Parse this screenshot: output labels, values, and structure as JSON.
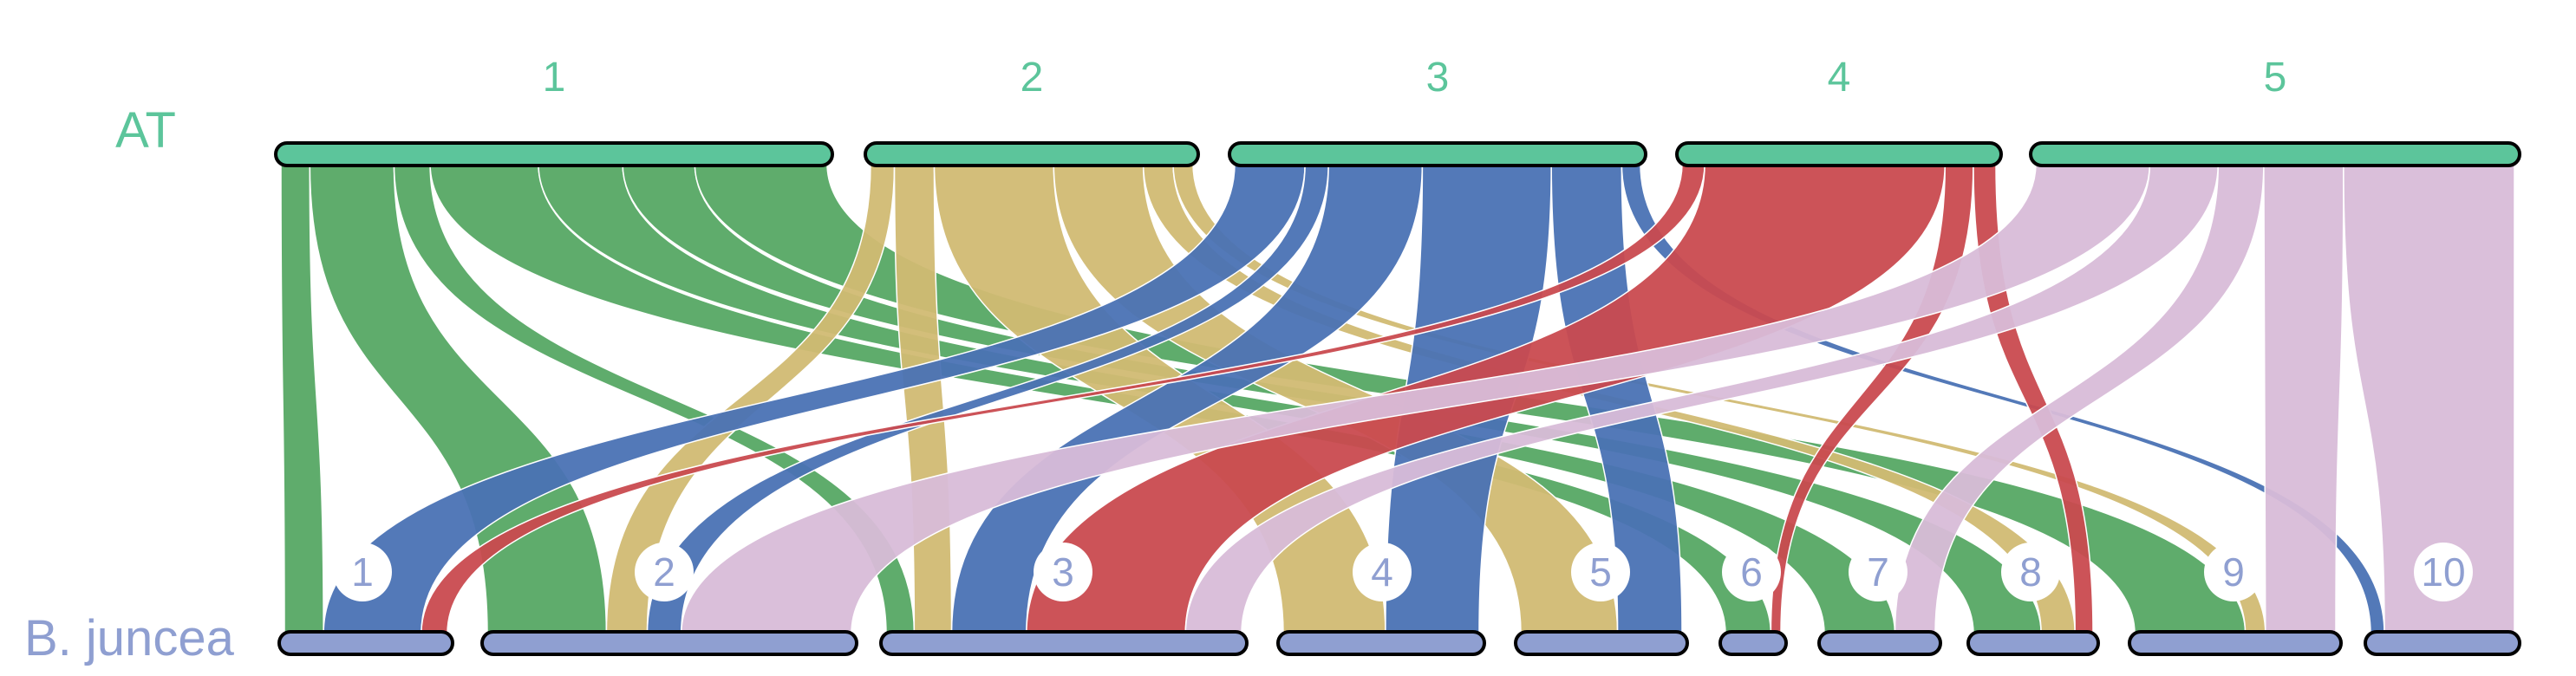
{
  "title": "",
  "top_genome": {
    "label": "AT",
    "color": "#5cc59b",
    "chromosomes": [
      {
        "id": "1",
        "label": "1"
      },
      {
        "id": "2",
        "label": "2"
      },
      {
        "id": "3",
        "label": "3"
      },
      {
        "id": "4",
        "label": "4"
      },
      {
        "id": "5",
        "label": "5"
      }
    ]
  },
  "bottom_genome": {
    "label": "B. juncea",
    "color": "#8f9fd1",
    "chromosomes": [
      {
        "id": "1",
        "label": "1"
      },
      {
        "id": "2",
        "label": "2"
      },
      {
        "id": "3",
        "label": "3"
      },
      {
        "id": "4",
        "label": "4"
      },
      {
        "id": "5",
        "label": "5"
      },
      {
        "id": "6",
        "label": "6"
      },
      {
        "id": "7",
        "label": "7"
      },
      {
        "id": "8",
        "label": "8"
      },
      {
        "id": "9",
        "label": "9"
      },
      {
        "id": "10",
        "label": "10"
      }
    ]
  },
  "source_colors": {
    "1": "#56a864",
    "2": "#d1bb73",
    "3": "#4a72b4",
    "4": "#c94a4f",
    "5": "#d8bcd8"
  },
  "links": [
    {
      "from": "1",
      "to": "1",
      "weight": 0.12
    },
    {
      "from": "1",
      "to": "2",
      "weight": 0.35
    },
    {
      "from": "1",
      "to": "3",
      "weight": 0.15
    },
    {
      "from": "1",
      "to": "6",
      "weight": 0.45
    },
    {
      "from": "1",
      "to": "7",
      "weight": 0.35
    },
    {
      "from": "1",
      "to": "8",
      "weight": 0.3
    },
    {
      "from": "1",
      "to": "9",
      "weight": 0.55
    },
    {
      "from": "2",
      "to": "2",
      "weight": 0.12
    },
    {
      "from": "2",
      "to": "3",
      "weight": 0.2
    },
    {
      "from": "2",
      "to": "4",
      "weight": 0.6
    },
    {
      "from": "2",
      "to": "5",
      "weight": 0.45
    },
    {
      "from": "2",
      "to": "8",
      "weight": 0.15
    },
    {
      "from": "2",
      "to": "9",
      "weight": 0.1
    },
    {
      "from": "3",
      "to": "1",
      "weight": 0.3
    },
    {
      "from": "3",
      "to": "2",
      "weight": 0.1
    },
    {
      "from": "3",
      "to": "3",
      "weight": 0.4
    },
    {
      "from": "3",
      "to": "4",
      "weight": 0.55
    },
    {
      "from": "3",
      "to": "5",
      "weight": 0.3
    },
    {
      "from": "3",
      "to": "10",
      "weight": 0.08
    },
    {
      "from": "4",
      "to": "1",
      "weight": 0.08
    },
    {
      "from": "4",
      "to": "3",
      "weight": 0.85
    },
    {
      "from": "4",
      "to": "6",
      "weight": 0.1
    },
    {
      "from": "4",
      "to": "8",
      "weight": 0.08
    },
    {
      "from": "5",
      "to": "2",
      "weight": 0.5
    },
    {
      "from": "5",
      "to": "3",
      "weight": 0.3
    },
    {
      "from": "5",
      "to": "7",
      "weight": 0.2
    },
    {
      "from": "5",
      "to": "9",
      "weight": 0.35
    },
    {
      "from": "5",
      "to": "10",
      "weight": 0.75
    }
  ]
}
